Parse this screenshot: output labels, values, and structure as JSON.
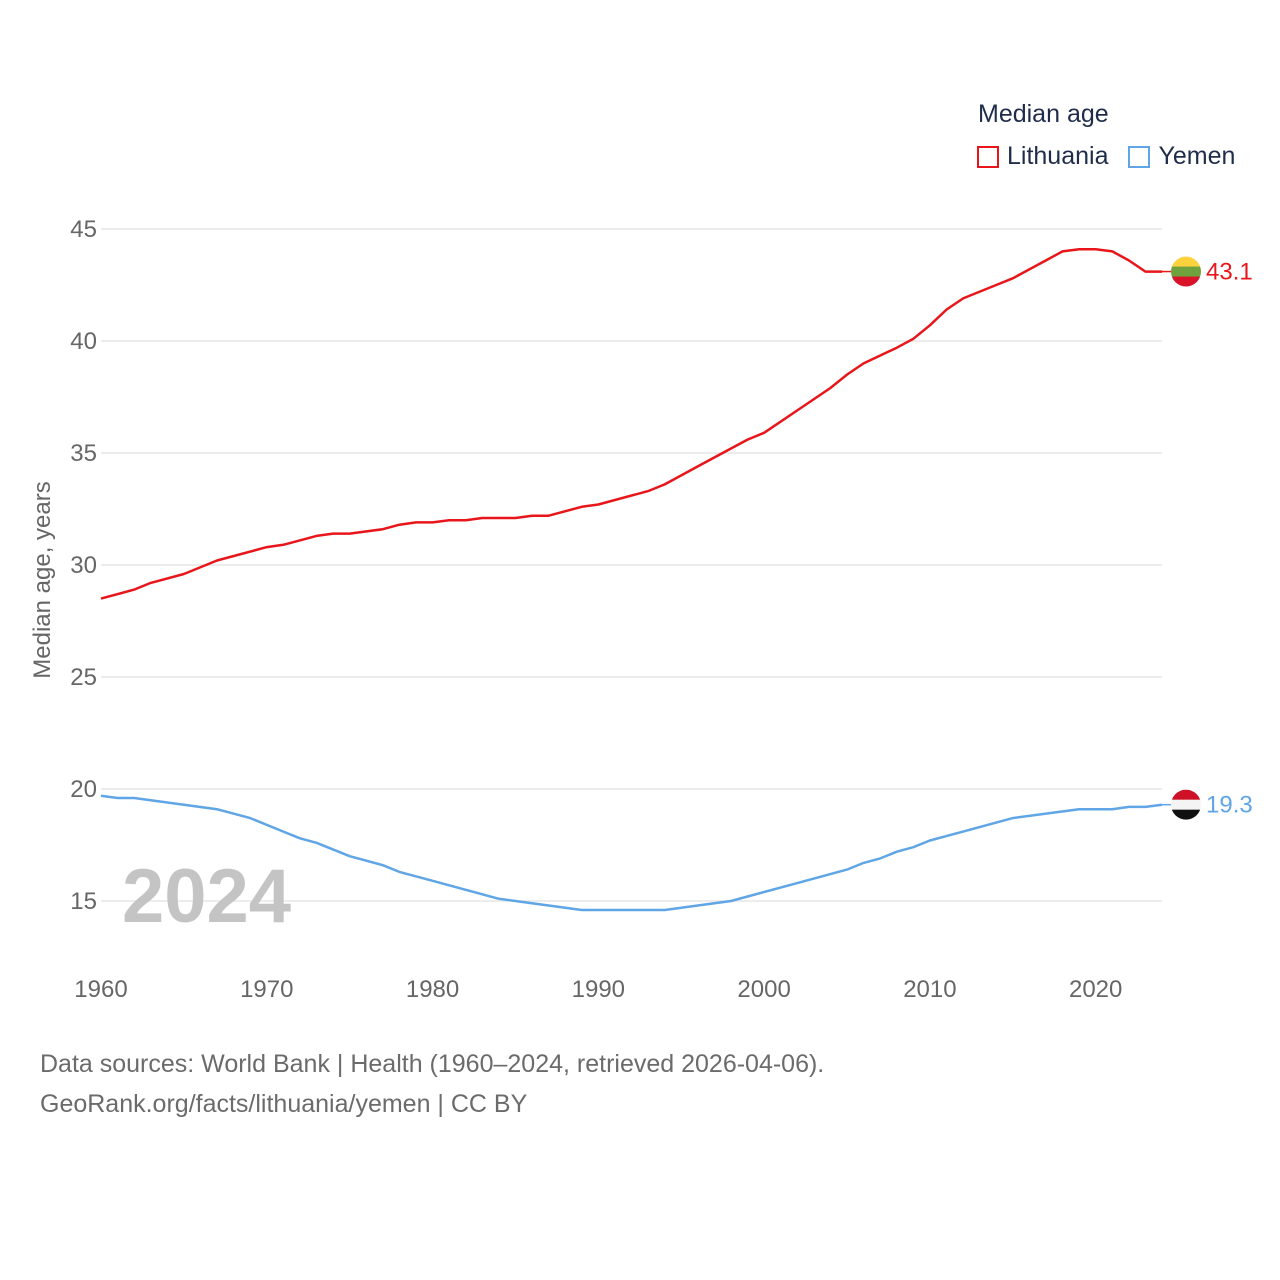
{
  "legend": {
    "title": "Median age",
    "items": [
      {
        "label": "Lithuania",
        "color": "#e8161b"
      },
      {
        "label": "Yemen",
        "color": "#60a5e5"
      }
    ]
  },
  "year_stamp": "2024",
  "source": {
    "line1": "Data sources: World Bank | Health (1960–2024, retrieved 2026-04-06).",
    "line2": "GeoRank.org/facts/lithuania/yemen | CC BY"
  },
  "chart_data": {
    "type": "line",
    "title": "Median age",
    "xlabel": "",
    "ylabel": "Median age, years",
    "xlim": [
      1960,
      2024
    ],
    "ylim": [
      12,
      47
    ],
    "x_ticks": [
      1960,
      1970,
      1980,
      1990,
      2000,
      2010,
      2020
    ],
    "y_ticks": [
      15,
      20,
      25,
      30,
      35,
      40,
      45
    ],
    "grid": true,
    "legend_position": "top-right",
    "series": [
      {
        "name": "Lithuania",
        "color": "#e8161b",
        "end_label": "43.1",
        "points": [
          [
            1960,
            28.5
          ],
          [
            1962,
            28.9
          ],
          [
            1963,
            29.2
          ],
          [
            1965,
            29.6
          ],
          [
            1967,
            30.2
          ],
          [
            1970,
            30.8
          ],
          [
            1971,
            30.9
          ],
          [
            1973,
            31.3
          ],
          [
            1974,
            31.4
          ],
          [
            1975,
            31.4
          ],
          [
            1977,
            31.6
          ],
          [
            1978,
            31.8
          ],
          [
            1979,
            31.9
          ],
          [
            1980,
            31.9
          ],
          [
            1981,
            32.0
          ],
          [
            1982,
            32.0
          ],
          [
            1983,
            32.1
          ],
          [
            1985,
            32.1
          ],
          [
            1986,
            32.2
          ],
          [
            1987,
            32.2
          ],
          [
            1989,
            32.6
          ],
          [
            1990,
            32.7
          ],
          [
            1993,
            33.3
          ],
          [
            1994,
            33.6
          ],
          [
            1996,
            34.4
          ],
          [
            1998,
            35.2
          ],
          [
            1999,
            35.6
          ],
          [
            2000,
            35.9
          ],
          [
            2002,
            36.9
          ],
          [
            2004,
            37.9
          ],
          [
            2005,
            38.5
          ],
          [
            2006,
            39.0
          ],
          [
            2008,
            39.7
          ],
          [
            2009,
            40.1
          ],
          [
            2010,
            40.7
          ],
          [
            2011,
            41.4
          ],
          [
            2012,
            41.9
          ],
          [
            2014,
            42.5
          ],
          [
            2015,
            42.8
          ],
          [
            2017,
            43.6
          ],
          [
            2018,
            44.0
          ],
          [
            2019,
            44.1
          ],
          [
            2020,
            44.1
          ],
          [
            2021,
            44.0
          ],
          [
            2022,
            43.6
          ],
          [
            2023,
            43.1
          ],
          [
            2024,
            43.1
          ]
        ]
      },
      {
        "name": "Yemen",
        "color": "#60a5e5",
        "end_label": "19.3",
        "points": [
          [
            1960,
            19.7
          ],
          [
            1961,
            19.6
          ],
          [
            1962,
            19.6
          ],
          [
            1965,
            19.3
          ],
          [
            1967,
            19.1
          ],
          [
            1969,
            18.7
          ],
          [
            1971,
            18.1
          ],
          [
            1972,
            17.8
          ],
          [
            1973,
            17.6
          ],
          [
            1975,
            17.0
          ],
          [
            1977,
            16.6
          ],
          [
            1978,
            16.3
          ],
          [
            1980,
            15.9
          ],
          [
            1982,
            15.5
          ],
          [
            1984,
            15.1
          ],
          [
            1986,
            14.9
          ],
          [
            1989,
            14.6
          ],
          [
            1994,
            14.6
          ],
          [
            1996,
            14.8
          ],
          [
            1998,
            15.0
          ],
          [
            2000,
            15.4
          ],
          [
            2002,
            15.8
          ],
          [
            2005,
            16.4
          ],
          [
            2006,
            16.7
          ],
          [
            2007,
            16.9
          ],
          [
            2008,
            17.2
          ],
          [
            2009,
            17.4
          ],
          [
            2010,
            17.7
          ],
          [
            2012,
            18.1
          ],
          [
            2015,
            18.7
          ],
          [
            2017,
            18.9
          ],
          [
            2019,
            19.1
          ],
          [
            2021,
            19.1
          ],
          [
            2022,
            19.2
          ],
          [
            2023,
            19.2
          ],
          [
            2024,
            19.3
          ]
        ]
      }
    ]
  }
}
